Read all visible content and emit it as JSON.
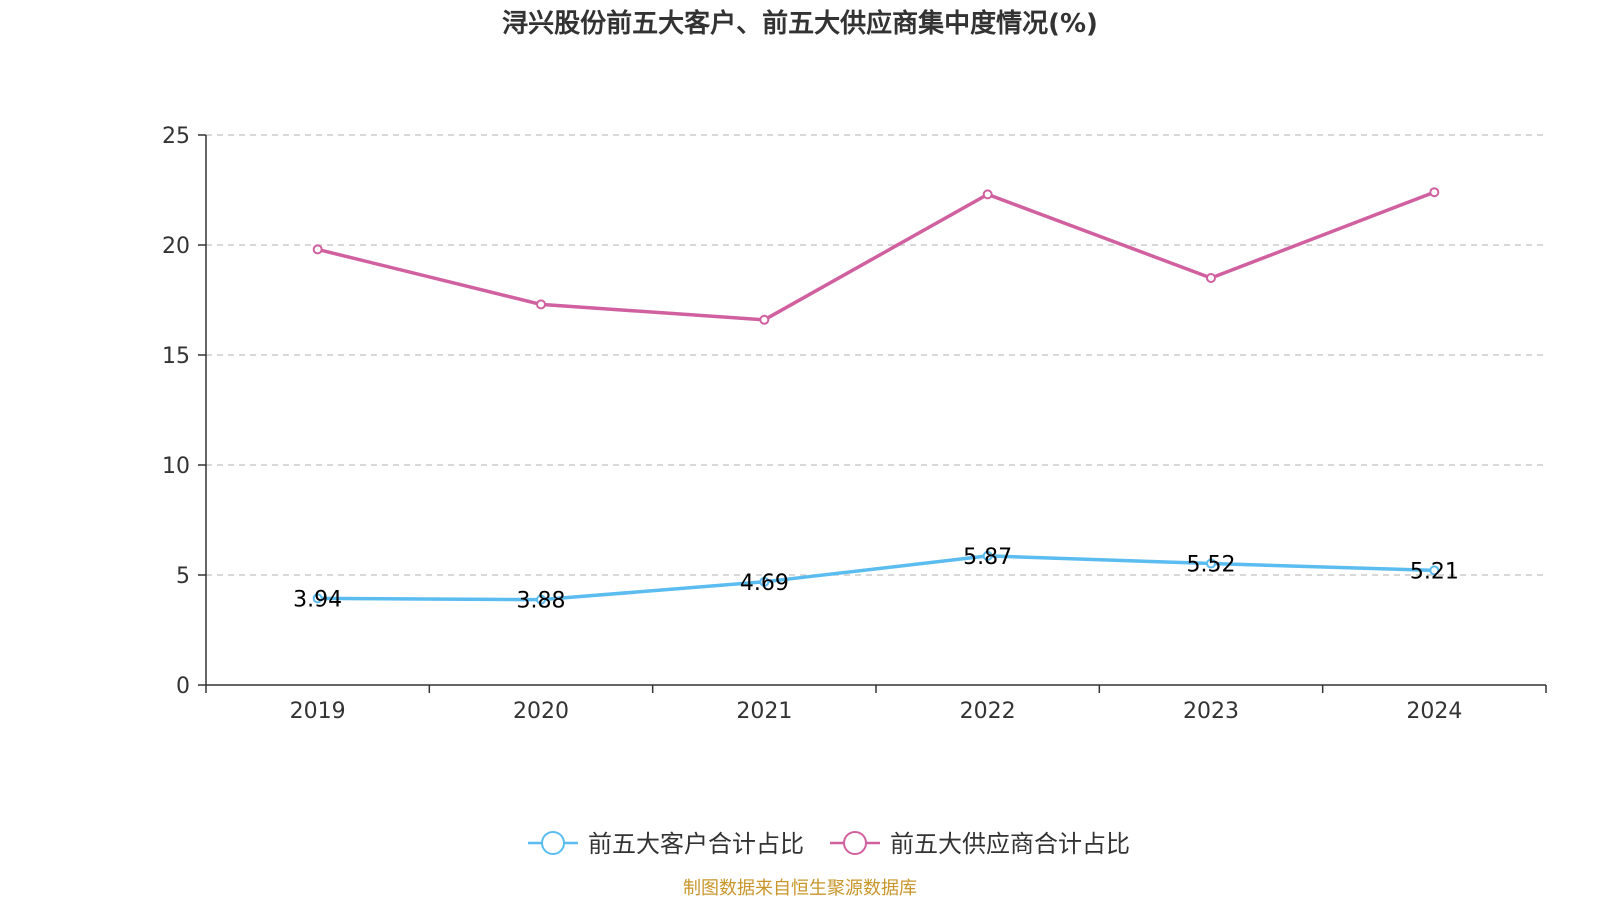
{
  "chart_data": {
    "type": "line",
    "title": "浔兴股份前五大客户、前五大供应商集中度情况(%)",
    "categories": [
      "2019",
      "2020",
      "2021",
      "2022",
      "2023",
      "2024"
    ],
    "ylim": [
      0,
      25
    ],
    "yticks": [
      "0",
      "5",
      "10",
      "15",
      "20",
      "25"
    ],
    "grid": true,
    "legend_position": "bottom-center",
    "series": [
      {
        "name": "前五大客户合计占比",
        "color": "#5bbcf0",
        "values": [
          3.94,
          3.88,
          4.69,
          5.87,
          5.52,
          5.21
        ],
        "labels": [
          "3.94",
          "3.88",
          "4.69",
          "5.87",
          "5.52",
          "5.21"
        ],
        "show_labels": true
      },
      {
        "name": "前五大供应商合计占比",
        "color": "#d0609f",
        "values": [
          19.8,
          17.3,
          16.6,
          22.3,
          18.5,
          22.4
        ],
        "show_labels": false
      }
    ]
  },
  "source": {
    "text": "制图数据来自恒生聚源数据库",
    "color": "#c8962a"
  }
}
